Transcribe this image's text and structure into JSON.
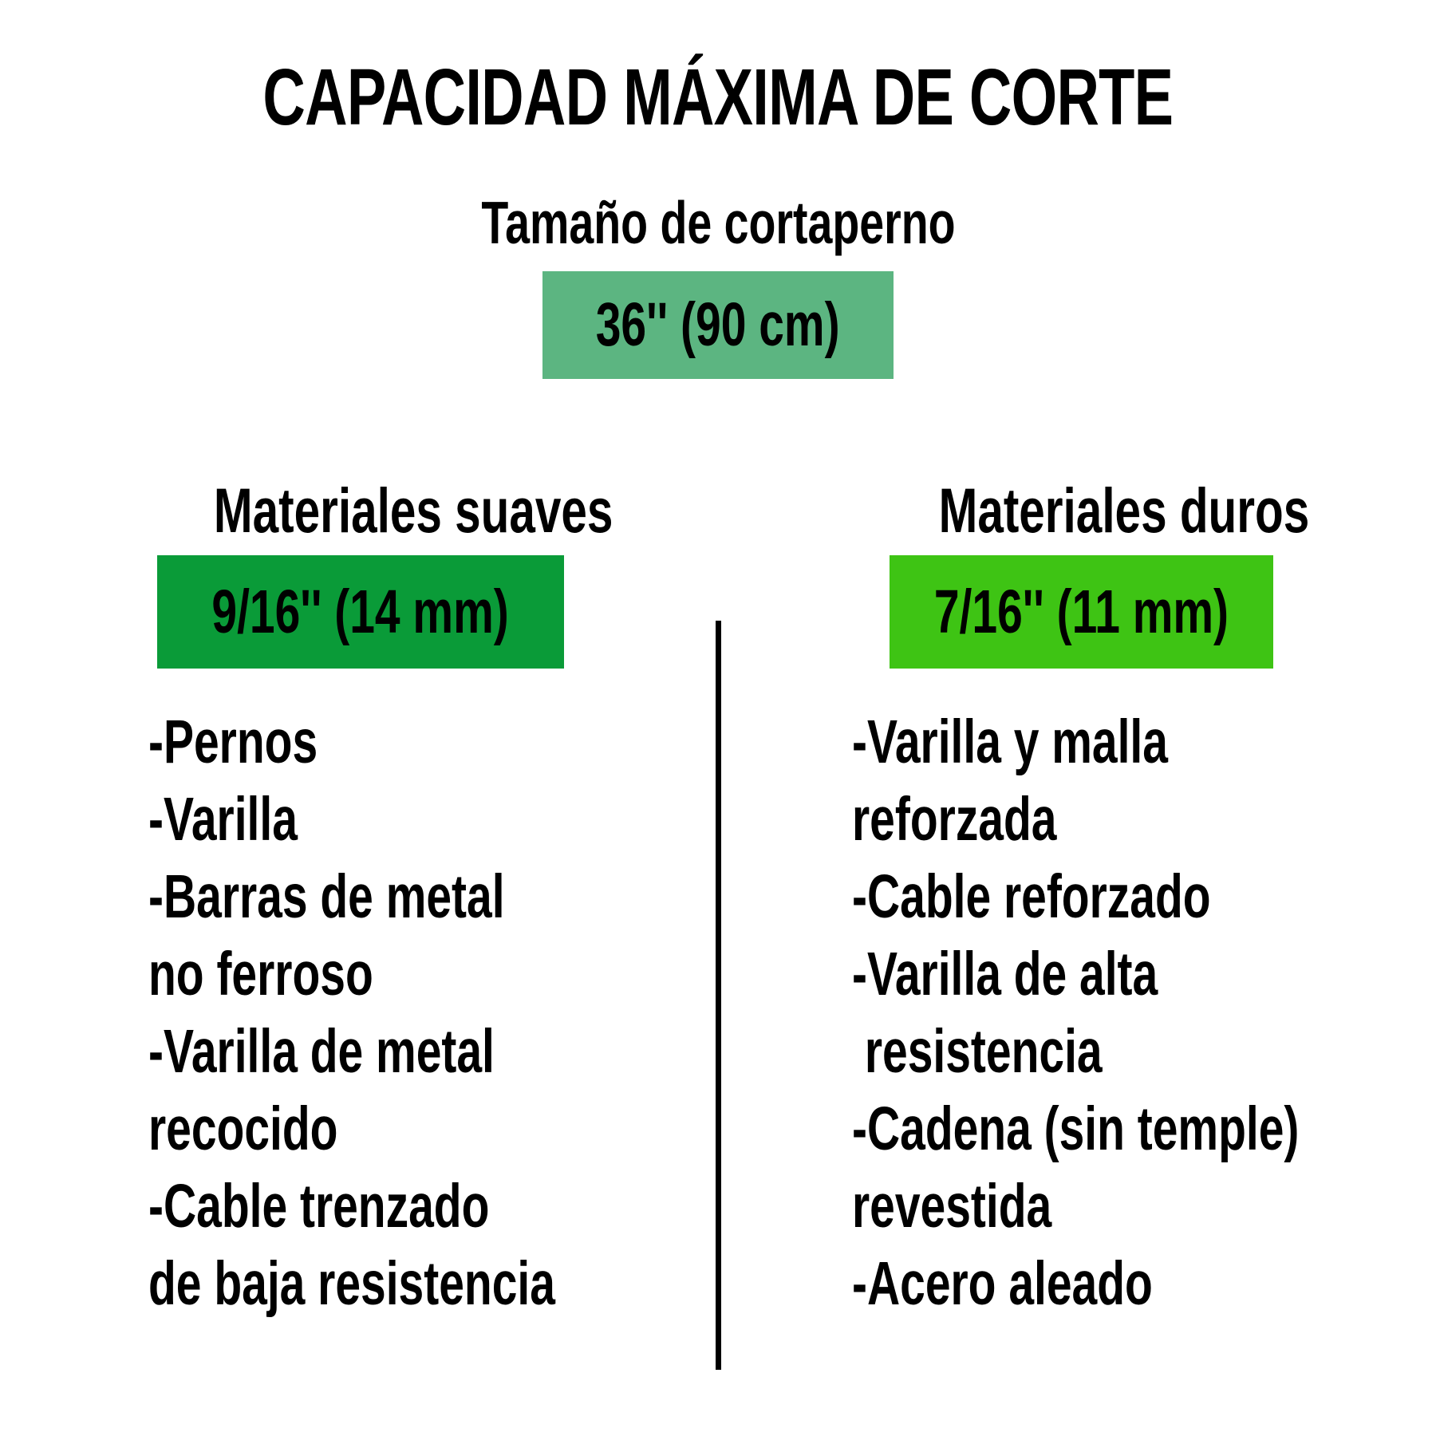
{
  "page": {
    "background_color": "#FFFFFF",
    "text_color": "#000000"
  },
  "title": "CAPACIDAD MÁXIMA DE CORTE",
  "size_section": {
    "label": "Tamaño de cortaperno",
    "badge": {
      "text": "36'' (90 cm)",
      "color": "#5CB581"
    }
  },
  "columns": [
    {
      "header": "Materiales suaves",
      "badge": {
        "text": "9/16'' (14 mm)",
        "color": "#0A9B38"
      },
      "lines": [
        "-Pernos",
        "-Varilla",
        "-Barras de metal",
        "no ferroso",
        "-Varilla de metal",
        "recocido",
        "-Cable trenzado",
        "de baja resistencia"
      ]
    },
    {
      "header": "Materiales duros",
      "badge": {
        "text": "7/16'' (11 mm)",
        "color": "#3EC414"
      },
      "lines": [
        "-Varilla y malla",
        "reforzada",
        "-Cable reforzado",
        "-Varilla de alta",
        " resistencia",
        "-Cadena (sin temple)",
        "revestida",
        "-Acero aleado"
      ]
    }
  ]
}
